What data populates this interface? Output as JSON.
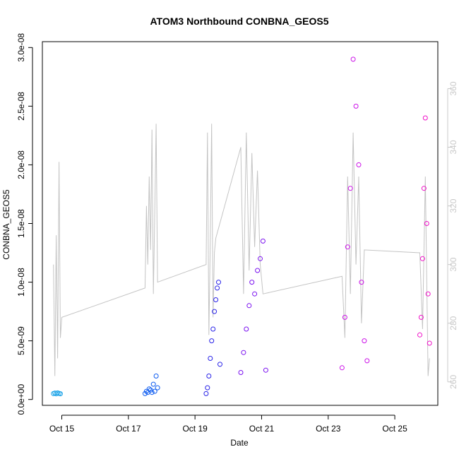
{
  "chart_data": {
    "type": "scatter",
    "title": "ATOM3 Northbound CONBNA_GEOS5",
    "xlabel": "Date",
    "ylabel": "CONBNA_GEOS5",
    "x_axis": {
      "type": "date",
      "lim": [
        "2016-10-14T10:00",
        "2016-10-26T07:00"
      ],
      "ticks": [
        "2016-10-15",
        "2016-10-17",
        "2016-10-19",
        "2016-10-21",
        "2016-10-23",
        "2016-10-25"
      ],
      "tick_labels": [
        "Oct 15",
        "Oct 17",
        "Oct 19",
        "Oct 21",
        "Oct 23",
        "Oct 25"
      ]
    },
    "y_axis": {
      "lim": [
        -5e-10,
        3.05e-08
      ],
      "ticks": [
        0,
        5e-09,
        1e-08,
        1.5e-08,
        2e-08,
        2.5e-08,
        3e-08
      ],
      "tick_labels": [
        "0.0e+00",
        "5.0e-09",
        "1.0e-08",
        "1.5e-08",
        "2.0e-08",
        "2.5e-08",
        "3.0e-08"
      ]
    },
    "y2_axis": {
      "lim": [
        252,
        376
      ],
      "ticks": [
        260,
        280,
        300,
        320,
        340,
        360
      ],
      "tick_labels": [
        "260",
        "280",
        "300",
        "320",
        "340",
        "360"
      ],
      "color": "#c8c8c8"
    },
    "grid": false,
    "legend": "none",
    "point_style": "open-circle",
    "series": [
      {
        "color": "#1aa3e8",
        "x": [
          "2016-10-14T18:00",
          "2016-10-14T19:00",
          "2016-10-14T20:00",
          "2016-10-14T21:00",
          "2016-10-14T22:00",
          "2016-10-14T23:00"
        ],
        "values": [
          5e-10,
          5.5e-10,
          4.8e-10,
          5.6e-10,
          5.2e-10,
          4.9e-10
        ]
      },
      {
        "color": "#0e5cf0",
        "x": [
          "2016-10-17T12:00",
          "2016-10-17T13:00",
          "2016-10-17T14:00",
          "2016-10-17T15:00",
          "2016-10-17T16:00",
          "2016-10-17T17:00",
          "2016-10-17T18:00",
          "2016-10-17T19:00",
          "2016-10-17T20:00",
          "2016-10-17T21:00"
        ],
        "values": [
          5e-10,
          7e-10,
          6e-10,
          9e-10,
          8e-10,
          6e-10,
          1.3e-09,
          7e-10,
          2e-09,
          1e-09
        ]
      },
      {
        "color": "#2a24e8",
        "x": [
          "2016-10-19T08:00",
          "2016-10-19T09:00",
          "2016-10-19T10:00",
          "2016-10-19T11:00",
          "2016-10-19T12:00",
          "2016-10-19T13:00",
          "2016-10-19T14:00",
          "2016-10-19T15:00",
          "2016-10-19T16:00",
          "2016-10-19T17:00",
          "2016-10-19T18:00"
        ],
        "values": [
          5e-10,
          1e-09,
          2e-09,
          3.5e-09,
          5e-09,
          6e-09,
          7.5e-09,
          8.5e-09,
          9.5e-09,
          1e-08,
          3e-09
        ]
      },
      {
        "color": "#7a10f0",
        "x": [
          "2016-10-20T09:00",
          "2016-10-20T11:00",
          "2016-10-20T13:00",
          "2016-10-20T15:00",
          "2016-10-20T17:00",
          "2016-10-20T19:00",
          "2016-10-20T21:00",
          "2016-10-20T23:00",
          "2016-10-21T01:00",
          "2016-10-21T03:00"
        ],
        "values": [
          2.3e-09,
          4e-09,
          6e-09,
          8e-09,
          1e-08,
          9e-09,
          1.1e-08,
          1.2e-08,
          1.35e-08,
          2.5e-09
        ]
      },
      {
        "color": "#cc12e8",
        "x": [
          "2016-10-23T10:00",
          "2016-10-23T12:00",
          "2016-10-23T14:00",
          "2016-10-23T16:00",
          "2016-10-23T18:00",
          "2016-10-23T20:00",
          "2016-10-23T22:00",
          "2016-10-24T00:00",
          "2016-10-24T02:00",
          "2016-10-24T04:00"
        ],
        "values": [
          2.7e-09,
          7e-09,
          1.3e-08,
          1.8e-08,
          2.9e-08,
          2.5e-08,
          2e-08,
          1e-08,
          5e-09,
          3.3e-09
        ]
      },
      {
        "color": "#f010c8",
        "x": [
          "2016-10-25T18:00",
          "2016-10-25T19:00",
          "2016-10-25T20:00",
          "2016-10-25T21:00",
          "2016-10-25T22:00",
          "2016-10-25T23:00",
          "2016-10-26T00:00",
          "2016-10-26T01:00"
        ],
        "values": [
          5.5e-09,
          7e-09,
          1.2e-08,
          1.8e-08,
          2.4e-08,
          1.5e-08,
          9e-09,
          4.8e-09
        ]
      }
    ],
    "line_series": {
      "axis": "y2",
      "color": "#c4c4c4",
      "x": [
        "2016-10-14T18:00",
        "2016-10-14T19:00",
        "2016-10-14T20:00",
        "2016-10-14T21:00",
        "2016-10-14T22:00",
        "2016-10-14T23:00",
        "2016-10-15T00:00",
        "2016-10-17T12:00",
        "2016-10-17T13:00",
        "2016-10-17T14:00",
        "2016-10-17T15:00",
        "2016-10-17T16:00",
        "2016-10-17T17:00",
        "2016-10-17T18:00",
        "2016-10-17T19:00",
        "2016-10-17T20:00",
        "2016-10-17T21:00",
        "2016-10-19T08:00",
        "2016-10-19T09:00",
        "2016-10-19T10:00",
        "2016-10-19T11:00",
        "2016-10-19T12:00",
        "2016-10-19T13:00",
        "2016-10-19T14:00",
        "2016-10-19T15:00",
        "2016-10-20T09:00",
        "2016-10-20T11:00",
        "2016-10-20T13:00",
        "2016-10-20T15:00",
        "2016-10-20T17:00",
        "2016-10-20T19:00",
        "2016-10-20T21:00",
        "2016-10-20T23:00",
        "2016-10-21T01:00",
        "2016-10-23T10:00",
        "2016-10-23T12:00",
        "2016-10-23T14:00",
        "2016-10-23T16:00",
        "2016-10-23T18:00",
        "2016-10-23T20:00",
        "2016-10-23T22:00",
        "2016-10-24T00:00",
        "2016-10-24T02:00",
        "2016-10-25T18:00",
        "2016-10-25T20:00",
        "2016-10-25T22:00",
        "2016-10-26T00:00",
        "2016-10-26T01:00"
      ],
      "values": [
        300,
        262,
        310,
        268,
        335,
        275,
        282,
        292,
        320,
        300,
        330,
        305,
        346,
        290,
        318,
        348,
        294,
        300,
        345,
        276,
        308,
        348,
        282,
        304,
        309,
        340,
        290,
        345,
        298,
        338,
        306,
        332,
        300,
        290,
        296,
        275,
        330,
        290,
        345,
        300,
        330,
        280,
        305,
        304,
        278,
        330,
        262,
        268
      ]
    }
  }
}
